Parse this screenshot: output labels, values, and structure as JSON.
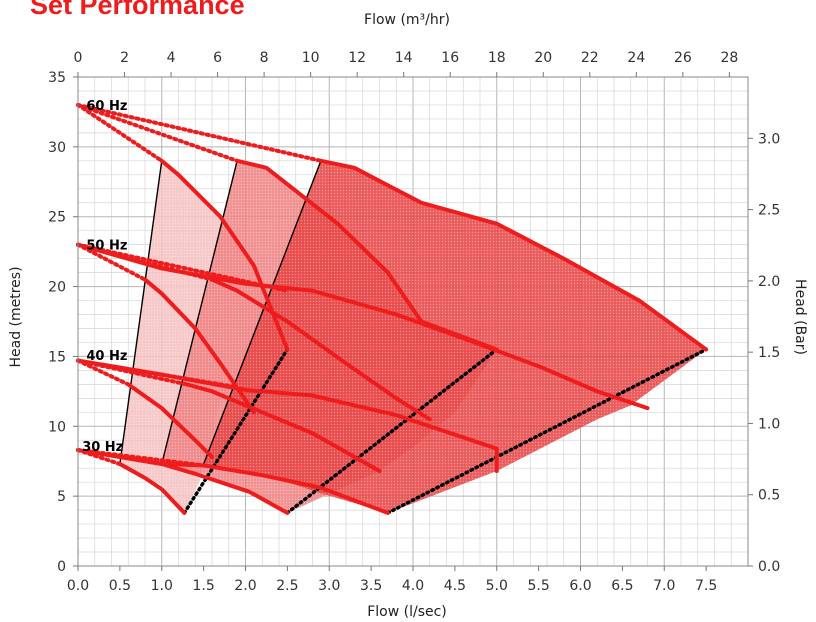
{
  "chart_data": {
    "type": "line",
    "title": "Set Performance",
    "xlabel": "Flow (l/sec)",
    "ylabel": "Head (metres)",
    "x2label": "Flow (m³/hr)",
    "y2label": "Head (Bar)",
    "xlim": [
      0,
      8
    ],
    "ylim": [
      0,
      35
    ],
    "x2lim": [
      0,
      28.8
    ],
    "y2lim": [
      0,
      3.43
    ],
    "x_ticks": [
      "0.0",
      "0.5",
      "1.0",
      "1.5",
      "2.0",
      "2.5",
      "3.0",
      "3.5",
      "4.0",
      "4.5",
      "5.0",
      "5.5",
      "6.0",
      "6.5",
      "7.0",
      "7.5"
    ],
    "y_ticks": [
      "0",
      "5",
      "10",
      "15",
      "20",
      "25",
      "30",
      "35"
    ],
    "x2_ticks": [
      "0",
      "2",
      "4",
      "6",
      "8",
      "10",
      "12",
      "14",
      "16",
      "18",
      "20",
      "22",
      "24",
      "26",
      "28"
    ],
    "y2_ticks": [
      "0.0",
      "0.5",
      "1.0",
      "1.5",
      "2.0",
      "2.5",
      "3.0"
    ],
    "grid": true,
    "speed_labels": [
      {
        "text": "60 Hz",
        "x": 0.1,
        "y": 33
      },
      {
        "text": "50 Hz",
        "x": 0.1,
        "y": 23
      },
      {
        "text": "40 Hz",
        "x": 0.1,
        "y": 15.1
      },
      {
        "text": "30 Hz",
        "x": 0.05,
        "y": 8.6
      }
    ],
    "regions": [
      {
        "name": "small",
        "color": "#f6c0c0",
        "points": [
          [
            0.5,
            7.3
          ],
          [
            1.0,
            29
          ],
          [
            1.2,
            28
          ],
          [
            1.7,
            25
          ],
          [
            2.1,
            21.5
          ],
          [
            2.5,
            15.5
          ],
          [
            1.7,
            12
          ],
          [
            1.55,
            7.9
          ],
          [
            1.45,
            6
          ],
          [
            1.27,
            3.8
          ],
          [
            1.0,
            5.8
          ],
          [
            0.8,
            6.3
          ]
        ]
      },
      {
        "name": "medium",
        "color": "#f08080",
        "points": [
          [
            1.0,
            7.3
          ],
          [
            1.9,
            29
          ],
          [
            2.25,
            28.5
          ],
          [
            3.1,
            24.5
          ],
          [
            3.7,
            21
          ],
          [
            4.1,
            17.5
          ],
          [
            5.0,
            15.5
          ],
          [
            4.5,
            11
          ],
          [
            4.0,
            8.5
          ],
          [
            3.6,
            6.8
          ],
          [
            2.5,
            3.8
          ],
          [
            2.05,
            5.3
          ],
          [
            1.5,
            6.6
          ]
        ]
      },
      {
        "name": "large",
        "color": "#e84040",
        "points": [
          [
            1.5,
            7.3
          ],
          [
            2.9,
            29
          ],
          [
            3.3,
            28.5
          ],
          [
            4.1,
            26
          ],
          [
            5.0,
            24.5
          ],
          [
            5.8,
            22
          ],
          [
            6.7,
            19
          ],
          [
            7.5,
            15.5
          ],
          [
            6.6,
            11.5
          ],
          [
            6.2,
            10.5
          ],
          [
            5.0,
            6.8
          ],
          [
            3.7,
            3.8
          ],
          [
            2.9,
            5.2
          ],
          [
            2.25,
            6.5
          ]
        ]
      }
    ],
    "series": [
      {
        "color": "#ee1c1c",
        "points": [
          [
            1.0,
            29
          ],
          [
            1.2,
            28
          ],
          [
            1.7,
            25
          ],
          [
            2.1,
            21.5
          ],
          [
            2.5,
            15.5
          ]
        ]
      },
      {
        "color": "#ee1c1c",
        "points": [
          [
            0.8,
            20.5
          ],
          [
            1.0,
            19.5
          ],
          [
            1.4,
            17
          ],
          [
            1.7,
            14.5
          ],
          [
            2.1,
            11
          ]
        ]
      },
      {
        "color": "#ee1c1c",
        "points": [
          [
            0.6,
            13
          ],
          [
            1.0,
            11.3
          ],
          [
            1.4,
            9
          ],
          [
            1.6,
            7.8
          ]
        ]
      },
      {
        "color": "#ee1c1c",
        "points": [
          [
            0.5,
            7.3
          ],
          [
            0.8,
            6.3
          ],
          [
            1.0,
            5.5
          ],
          [
            1.27,
            3.8
          ]
        ]
      },
      {
        "color": "#ee1c1c",
        "points": [
          [
            1.9,
            29
          ],
          [
            2.25,
            28.5
          ],
          [
            3.1,
            24.5
          ],
          [
            3.7,
            21
          ],
          [
            4.1,
            17.5
          ],
          [
            5.0,
            15.5
          ]
        ]
      },
      {
        "color": "#ee1c1c",
        "points": [
          [
            1.6,
            20.5
          ],
          [
            1.9,
            19.7
          ],
          [
            2.5,
            17.5
          ],
          [
            3.2,
            14.5
          ],
          [
            3.8,
            12
          ],
          [
            4.2,
            10.5
          ]
        ]
      },
      {
        "color": "#ee1c1c",
        "points": [
          [
            1.3,
            13
          ],
          [
            1.6,
            12.5
          ],
          [
            2.2,
            11
          ],
          [
            2.8,
            9.5
          ],
          [
            3.6,
            6.8
          ]
        ]
      },
      {
        "color": "#ee1c1c",
        "points": [
          [
            1.0,
            7.3
          ],
          [
            1.4,
            6.6
          ],
          [
            2.05,
            5.3
          ],
          [
            2.5,
            3.8
          ]
        ]
      },
      {
        "color": "#ee1c1c",
        "points": [
          [
            2.9,
            29
          ],
          [
            3.3,
            28.5
          ],
          [
            4.1,
            26
          ],
          [
            5.0,
            24.5
          ],
          [
            5.8,
            22
          ],
          [
            6.7,
            19
          ],
          [
            7.5,
            15.5
          ]
        ]
      },
      {
        "color": "#ee1c1c",
        "points": [
          [
            0.0,
            23
          ],
          [
            1.0,
            21.3
          ],
          [
            2.0,
            20.2
          ],
          [
            2.8,
            19.7
          ],
          [
            3.8,
            18
          ],
          [
            4.6,
            16.3
          ],
          [
            5.5,
            14.3
          ],
          [
            6.2,
            12.5
          ],
          [
            6.8,
            11.3
          ]
        ]
      },
      {
        "color": "#ee1c1c",
        "points": [
          [
            0.0,
            14.7
          ],
          [
            1.0,
            13.7
          ],
          [
            2.0,
            12.6
          ],
          [
            2.8,
            12.2
          ],
          [
            3.8,
            10.8
          ],
          [
            4.3,
            9.8
          ],
          [
            5.0,
            8.4
          ],
          [
            5.0,
            6.8
          ]
        ]
      },
      {
        "color": "#ee1c1c",
        "points": [
          [
            0.0,
            8.3
          ],
          [
            1.0,
            7.3
          ],
          [
            1.5,
            7.2
          ],
          [
            2.2,
            6.5
          ],
          [
            2.9,
            5.6
          ],
          [
            3.7,
            3.8
          ]
        ]
      }
    ],
    "system_curves": [
      {
        "color": "#ee1c1c",
        "points": [
          [
            0.0,
            33
          ],
          [
            1.0,
            29
          ]
        ]
      },
      {
        "color": "#ee1c1c",
        "points": [
          [
            0.0,
            33
          ],
          [
            1.9,
            29
          ]
        ]
      },
      {
        "color": "#ee1c1c",
        "points": [
          [
            0.0,
            33
          ],
          [
            2.9,
            29
          ]
        ]
      },
      {
        "color": "#ee1c1c",
        "points": [
          [
            0.0,
            23
          ],
          [
            0.8,
            20.5
          ]
        ]
      },
      {
        "color": "#ee1c1c",
        "points": [
          [
            0.0,
            23
          ],
          [
            1.6,
            20.5
          ]
        ]
      },
      {
        "color": "#ee1c1c",
        "points": [
          [
            0.0,
            23
          ],
          [
            2.5,
            19.7
          ]
        ]
      },
      {
        "color": "#ee1c1c",
        "points": [
          [
            0.0,
            14.7
          ],
          [
            0.6,
            13
          ]
        ]
      },
      {
        "color": "#ee1c1c",
        "points": [
          [
            0.0,
            14.7
          ],
          [
            1.3,
            13
          ]
        ]
      },
      {
        "color": "#ee1c1c",
        "points": [
          [
            0.0,
            14.7
          ],
          [
            1.9,
            12.8
          ]
        ]
      },
      {
        "color": "#ee1c1c",
        "points": [
          [
            0.0,
            8.3
          ],
          [
            0.5,
            7.3
          ]
        ]
      },
      {
        "color": "#ee1c1c",
        "points": [
          [
            0.0,
            8.3
          ],
          [
            1.0,
            7.3
          ]
        ]
      },
      {
        "color": "#ee1c1c",
        "points": [
          [
            0.0,
            8.3
          ],
          [
            1.5,
            7.2
          ]
        ]
      }
    ],
    "dotted_envelopes": [
      {
        "color": "#000000",
        "points": [
          [
            1.27,
            3.8
          ],
          [
            2.5,
            15.5
          ]
        ]
      },
      {
        "color": "#000000",
        "points": [
          [
            2.5,
            3.8
          ],
          [
            5.0,
            15.5
          ]
        ]
      },
      {
        "color": "#000000",
        "points": [
          [
            3.7,
            3.8
          ],
          [
            7.5,
            15.5
          ]
        ]
      }
    ],
    "solid_envelopes": [
      {
        "color": "#000000",
        "points": [
          [
            0.5,
            7.3
          ],
          [
            1.0,
            29
          ]
        ]
      },
      {
        "color": "#000000",
        "points": [
          [
            1.0,
            7.3
          ],
          [
            1.9,
            29
          ]
        ]
      },
      {
        "color": "#000000",
        "points": [
          [
            1.5,
            7.3
          ],
          [
            2.9,
            29
          ]
        ]
      }
    ]
  }
}
